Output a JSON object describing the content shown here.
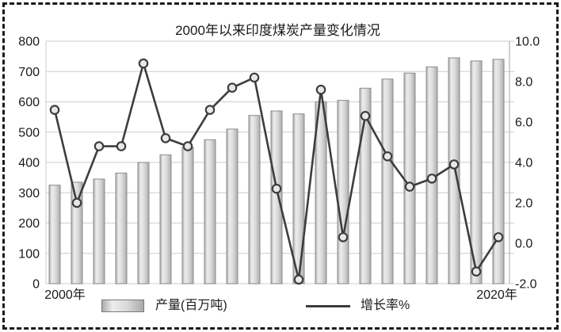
{
  "figure": {
    "title": "2000年以来印度煤炭产量变化情况"
  },
  "chart_data": {
    "type": "combo-bar-line",
    "title": "2000年以来印度煤炭产量变化情况",
    "categories": [
      2000,
      2001,
      2002,
      2003,
      2004,
      2005,
      2006,
      2007,
      2008,
      2009,
      2010,
      2011,
      2012,
      2013,
      2014,
      2015,
      2016,
      2017,
      2018,
      2019,
      2020
    ],
    "series": [
      {
        "name": "产量(百万吨)",
        "type": "bar",
        "axis": "left",
        "values": [
          325,
          335,
          345,
          365,
          400,
          425,
          450,
          475,
          510,
          555,
          570,
          560,
          600,
          605,
          645,
          675,
          695,
          715,
          745,
          735,
          740
        ]
      },
      {
        "name": "增长率%",
        "type": "line",
        "axis": "right",
        "values": [
          6.6,
          2.0,
          4.8,
          4.8,
          8.9,
          5.2,
          4.8,
          6.6,
          7.7,
          8.2,
          2.7,
          -1.8,
          7.6,
          0.3,
          6.3,
          4.3,
          2.8,
          3.2,
          3.9,
          -1.4,
          0.3
        ]
      }
    ],
    "left_axis": {
      "min": 0,
      "max": 800,
      "step": 100,
      "tick_values": [
        0,
        100,
        200,
        300,
        400,
        500,
        600,
        700,
        800
      ],
      "labels": [
        "0",
        "100",
        "200",
        "300",
        "400",
        "500",
        "600",
        "700",
        "800"
      ]
    },
    "right_axis": {
      "min": -2,
      "max": 10,
      "step": 2,
      "tick_values": [
        -2,
        0,
        2,
        4,
        6,
        8,
        10
      ],
      "labels": [
        "-2.0",
        "0.0",
        "2.0",
        "4.0",
        "6.0",
        "8.0",
        "10.0"
      ]
    },
    "x_axis": {
      "visible_labels": [
        {
          "text": "2000年",
          "at_category": 2000
        },
        {
          "text": "2020年",
          "at_category": 2020
        }
      ]
    },
    "legend_position": "bottom",
    "grid": true
  },
  "colors": {
    "background": "#ffffff",
    "frame_dash": "#1a1a1a",
    "bar_fill_light": "#ededed",
    "bar_fill_mid": "#d9d9d9",
    "bar_fill_dark": "#ababab",
    "bar_border": "#8c8c8c",
    "line": "#3d3d3d",
    "marker_fill": "#e8e8e8",
    "marker_stroke": "#3d3d3d",
    "grid": "#d6d6d6",
    "axis_line": "#b5b5b5",
    "axis_text": "#1a1a1a"
  }
}
